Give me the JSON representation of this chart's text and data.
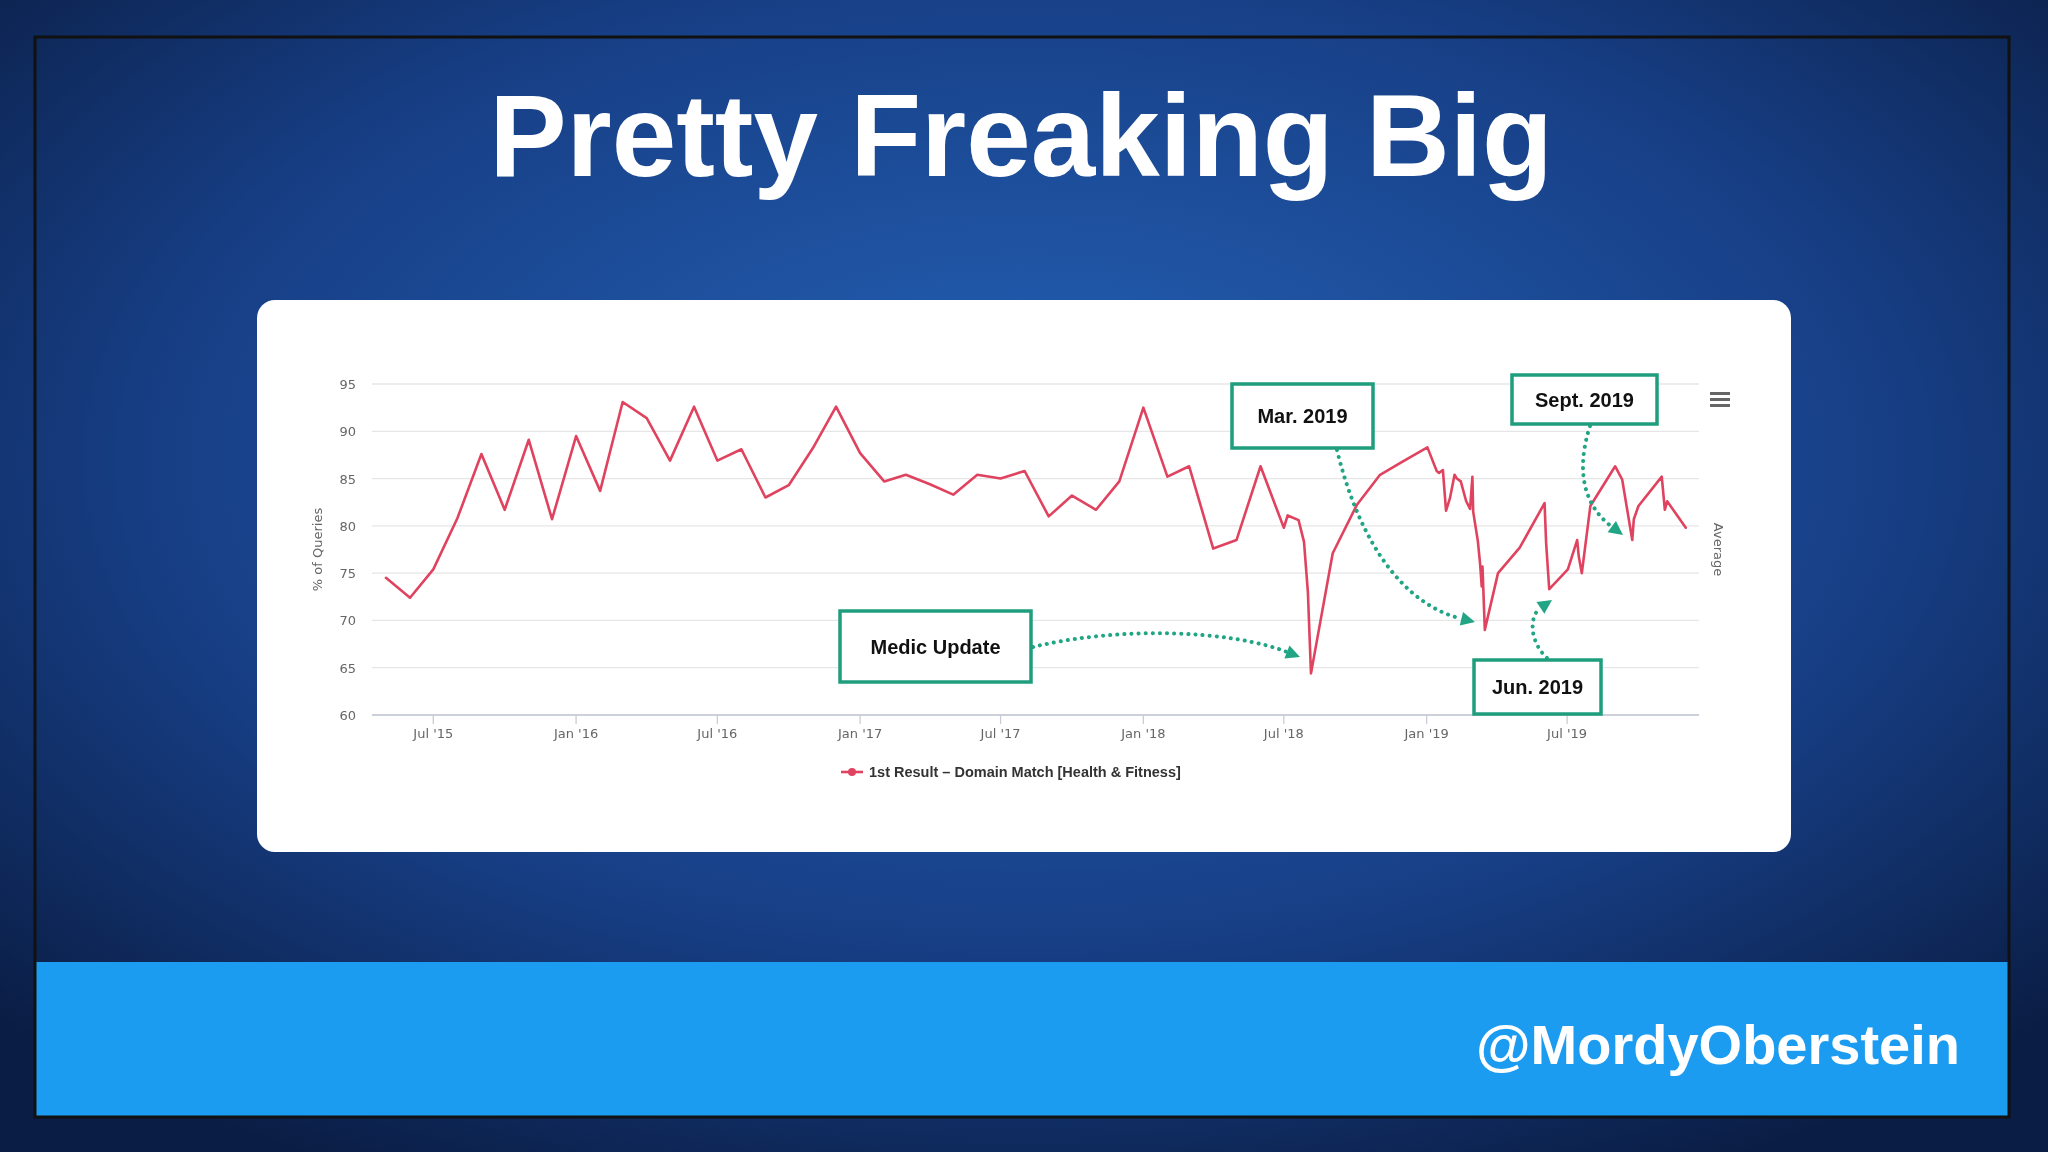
{
  "chart_data": {
    "type": "line",
    "title": "Pretty Freaking Big",
    "ylabel": "% of Queries",
    "y2label": "Average",
    "x": [
      "2015-05-01",
      "2015-06-01",
      "2015-07-01",
      "2015-08-01",
      "2015-09-01",
      "2015-10-01",
      "2015-11-01",
      "2015-12-01",
      "2016-01-01",
      "2016-02-01",
      "2016-03-01",
      "2016-04-01",
      "2016-05-01",
      "2016-06-01",
      "2016-07-01",
      "2016-08-01",
      "2016-09-01",
      "2016-10-01",
      "2016-11-01",
      "2016-12-01",
      "2017-01-01",
      "2017-02-01",
      "2017-03-01",
      "2017-04-01",
      "2017-05-01",
      "2017-06-01",
      "2017-07-01",
      "2017-08-01",
      "2017-09-01",
      "2017-10-01",
      "2017-11-01",
      "2017-12-01",
      "2018-01-01",
      "2018-02-01",
      "2018-03-01",
      "2018-04-01",
      "2018-05-01",
      "2018-06-01",
      "2018-07-01",
      "2018-07-06",
      "2018-07-20",
      "2018-07-27",
      "2018-08-01",
      "2018-08-05",
      "2018-09-02",
      "2018-10-03",
      "2018-11-02",
      "2018-12-01",
      "2019-01-02",
      "2019-01-14",
      "2019-01-17",
      "2019-01-22",
      "2019-01-26",
      "2019-01-31",
      "2019-02-06",
      "2019-02-09",
      "2019-02-14",
      "2019-02-21",
      "2019-02-26",
      "2019-03-01",
      "2019-03-02",
      "2019-03-08",
      "2019-03-11",
      "2019-03-13",
      "2019-03-14",
      "2019-03-17",
      "2019-04-03",
      "2019-05-01",
      "2019-06-02",
      "2019-06-04",
      "2019-06-08",
      "2019-07-02",
      "2019-07-14",
      "2019-07-16",
      "2019-07-20",
      "2019-07-31",
      "2019-09-01",
      "2019-09-10",
      "2019-09-23",
      "2019-09-25",
      "2019-10-01",
      "2019-10-31",
      "2019-11-04",
      "2019-11-07",
      "2019-12-01"
    ],
    "series": [
      {
        "name": "1st Result – Domain Match [Health & Fitness]",
        "color": "#e0435f",
        "values": [
          74.5,
          72.4,
          75.4,
          80.8,
          87.6,
          81.7,
          89.1,
          80.7,
          89.5,
          83.7,
          93.1,
          91.4,
          86.9,
          92.6,
          86.9,
          88.1,
          83.0,
          84.3,
          88.2,
          92.6,
          87.7,
          84.7,
          85.4,
          84.4,
          83.3,
          85.4,
          85.0,
          85.8,
          81.0,
          83.2,
          81.7,
          84.7,
          92.5,
          85.2,
          86.3,
          77.6,
          78.5,
          86.3,
          79.8,
          81.1,
          80.6,
          78.3,
          73.0,
          64.4,
          77.1,
          82.2,
          85.4,
          86.8,
          88.3,
          85.8,
          85.6,
          85.9,
          81.6,
          82.9,
          85.4,
          85.0,
          84.7,
          82.6,
          81.8,
          85.2,
          81.5,
          78.4,
          75.9,
          73.6,
          75.7,
          69.0,
          75.0,
          77.7,
          82.4,
          78.2,
          73.3,
          75.4,
          78.5,
          76.8,
          75.0,
          82.1,
          86.3,
          84.9,
          78.5,
          80.7,
          82.1,
          85.2,
          81.7,
          82.6,
          79.8
        ]
      }
    ],
    "xlim": [
      "2015-04-13",
      "2019-12-18"
    ],
    "xticks": [
      {
        "value": "2015-07-01",
        "label": "Jul '15"
      },
      {
        "value": "2016-01-01",
        "label": "Jan '16"
      },
      {
        "value": "2016-07-01",
        "label": "Jul '16"
      },
      {
        "value": "2017-01-01",
        "label": "Jan '17"
      },
      {
        "value": "2017-07-01",
        "label": "Jul '17"
      },
      {
        "value": "2018-01-01",
        "label": "Jan '18"
      },
      {
        "value": "2018-07-01",
        "label": "Jul '18"
      },
      {
        "value": "2019-01-01",
        "label": "Jan '19"
      },
      {
        "value": "2019-07-01",
        "label": "Jul '19"
      }
    ],
    "ylim": [
      60,
      95
    ],
    "yticks": [
      60,
      65,
      70,
      75,
      80,
      85,
      90,
      95
    ],
    "grid": "y",
    "legend": "bottom",
    "annotations": [
      "Medic Update",
      "Mar. 2019",
      "Jun. 2019",
      "Sept. 2019",
      "@MordyOberstein"
    ]
  }
}
